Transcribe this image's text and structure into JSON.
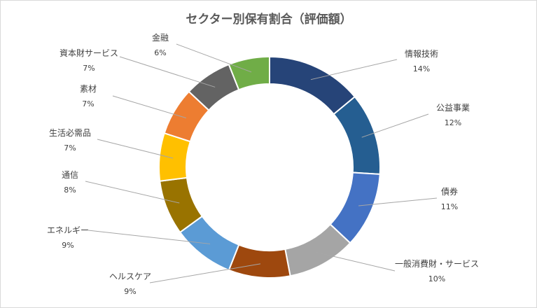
{
  "chart_data": {
    "type": "pie",
    "variant": "doughnut",
    "title": "セクター別保有割合（評価額）",
    "legend": "none",
    "slices": [
      {
        "label": "情報技術",
        "value": 14,
        "display": "14%",
        "color": "#264478"
      },
      {
        "label": "公益事業",
        "value": 12,
        "display": "12%",
        "color": "#255E91"
      },
      {
        "label": "債券",
        "value": 11,
        "display": "11%",
        "color": "#4472C4"
      },
      {
        "label": "一般消費財・サービス",
        "value": 10,
        "display": "10%",
        "color": "#A5A5A5"
      },
      {
        "label": "ヘルスケア",
        "value": 9,
        "display": "9%",
        "color": "#9E480E"
      },
      {
        "label": "エネルギー",
        "value": 9,
        "display": "9%",
        "color": "#5B9BD5"
      },
      {
        "label": "通信",
        "value": 8,
        "display": "8%",
        "color": "#997300"
      },
      {
        "label": "生活必需品",
        "value": 7,
        "display": "7%",
        "color": "#FFC000"
      },
      {
        "label": "素材",
        "value": 7,
        "display": "7%",
        "color": "#ED7D31"
      },
      {
        "label": "資本財サービス",
        "value": 7,
        "display": "7%",
        "color": "#636363"
      },
      {
        "label": "金融",
        "value": 6,
        "display": "6%",
        "color": "#70AD47"
      }
    ]
  }
}
